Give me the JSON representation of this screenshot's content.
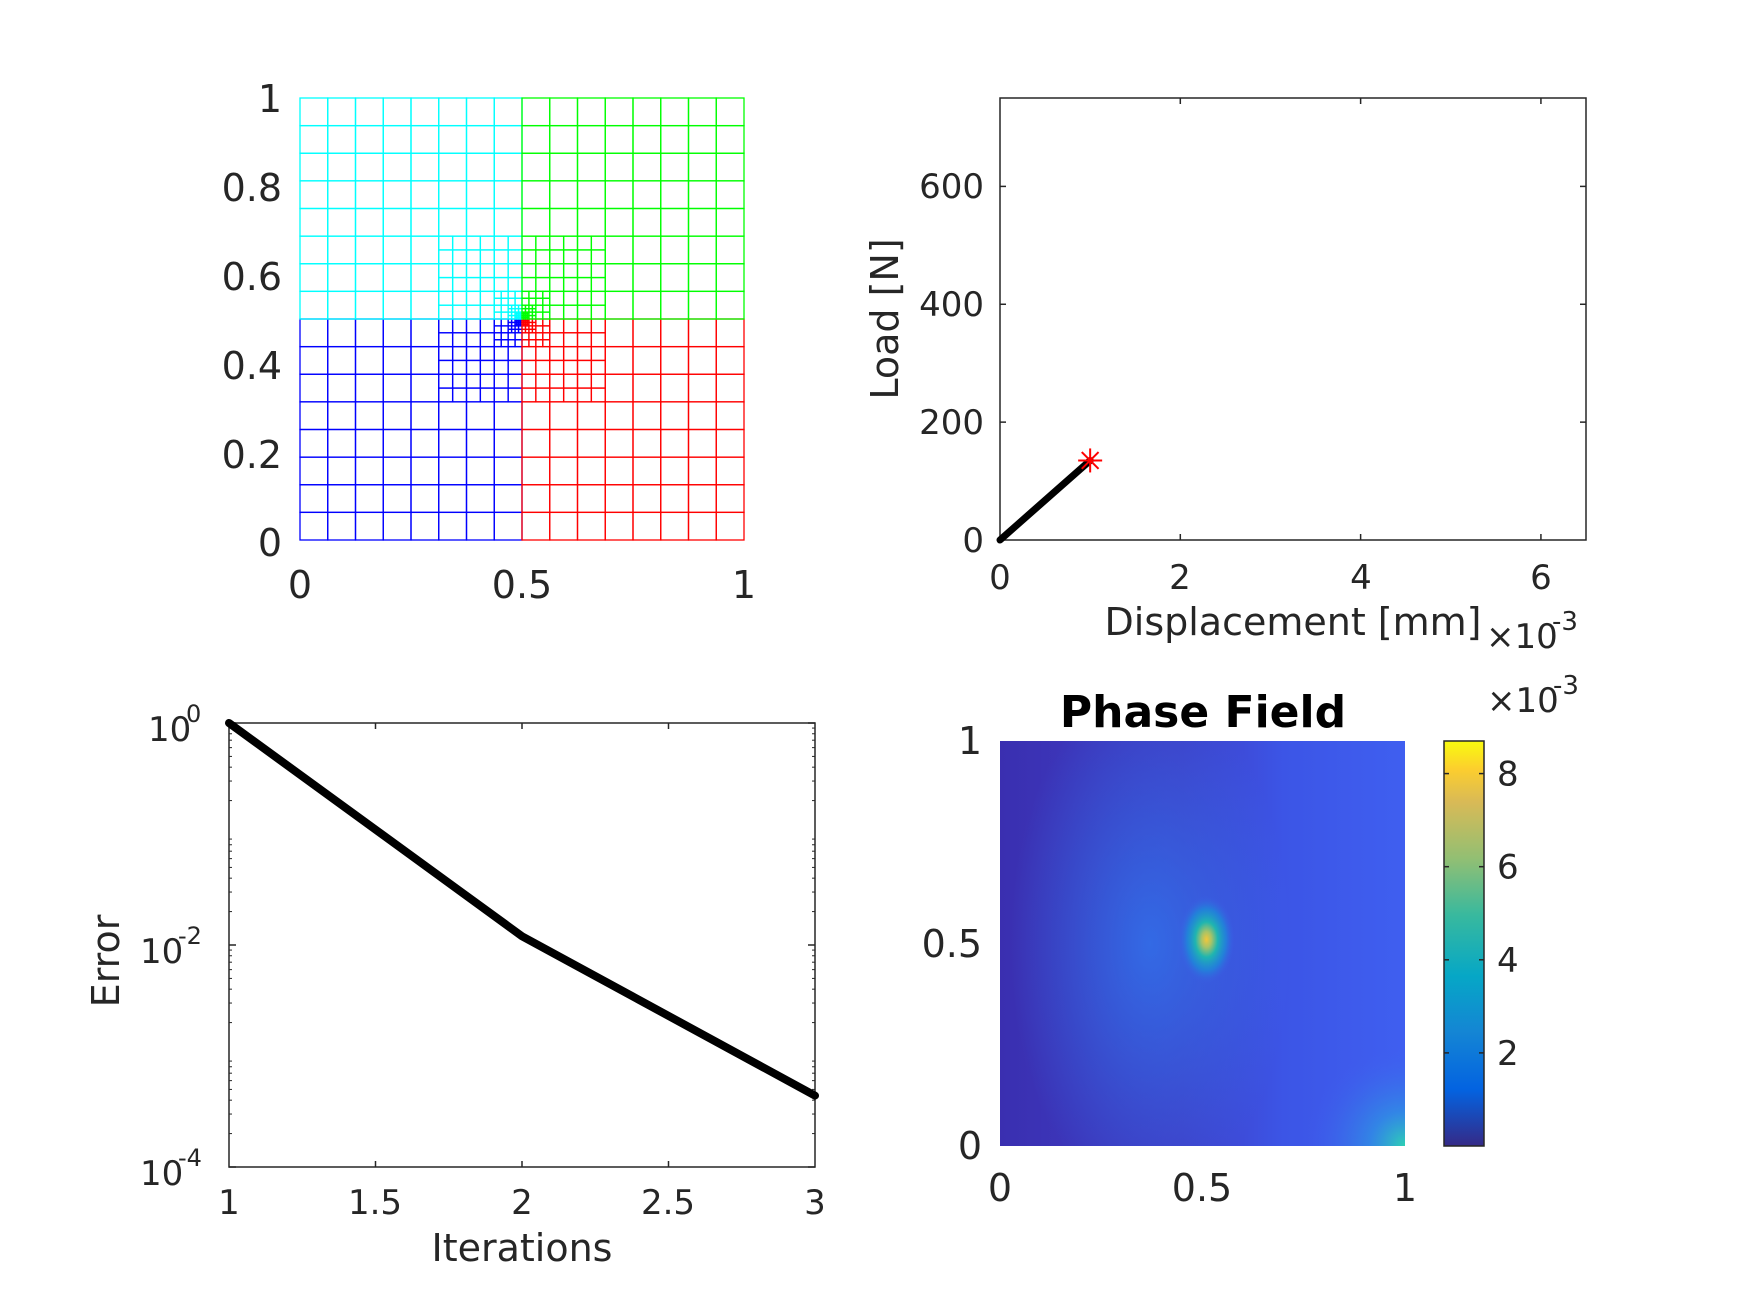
{
  "chart_data": [
    {
      "type": "mesh",
      "xlim": [
        0,
        1
      ],
      "ylim": [
        0,
        1
      ],
      "x_ticks": [
        "0",
        "0.5",
        "1"
      ],
      "y_ticks": [
        "0",
        "0.2",
        "0.4",
        "0.6",
        "0.8",
        "1"
      ],
      "quadrants": [
        {
          "color": "#0000ff",
          "x": [
            0,
            0.5
          ],
          "y": [
            0,
            0.5
          ]
        },
        {
          "color": "#ff0000",
          "x": [
            0.5,
            1
          ],
          "y": [
            0,
            0.5
          ]
        },
        {
          "color": "#00ffff",
          "x": [
            0,
            0.5
          ],
          "y": [
            0.5,
            1
          ]
        },
        {
          "color": "#00ff00",
          "x": [
            0.5,
            1
          ],
          "y": [
            0.5,
            1
          ]
        }
      ],
      "refinement_center": [
        0.5,
        0.5
      ]
    },
    {
      "type": "line",
      "xlabel": "Displacement [mm]",
      "ylabel": "Load [N]",
      "xlim": [
        0,
        0.0065
      ],
      "ylim": [
        0,
        750
      ],
      "x_exponent_label": "×10",
      "x_exponent_power": "-3",
      "x_ticks": [
        "0",
        "2",
        "4",
        "6"
      ],
      "y_ticks": [
        "0",
        "200",
        "400",
        "600"
      ],
      "series": [
        {
          "x": [
            0,
            0.001
          ],
          "y": [
            0,
            135
          ],
          "color": "#000000"
        }
      ],
      "marker": {
        "x": 0.001,
        "y": 135,
        "symbol": "*",
        "color": "#ff0000"
      }
    },
    {
      "type": "line",
      "xlabel": "Iterations",
      "ylabel": "Error",
      "yscale": "log",
      "xlim": [
        1,
        3
      ],
      "ylim": [
        0.0001,
        1
      ],
      "x_ticks": [
        "1",
        "1.5",
        "2",
        "2.5",
        "3"
      ],
      "y_tick_base": "10",
      "y_ticks": [
        "0",
        "-2",
        "-4"
      ],
      "series": [
        {
          "x": [
            1,
            2,
            3
          ],
          "y": [
            1,
            0.012,
            0.00044
          ],
          "color": "#000000"
        }
      ]
    },
    {
      "type": "heatmap",
      "title": "Phase Field",
      "xlim": [
        0,
        1
      ],
      "ylim": [
        0,
        1
      ],
      "x_ticks": [
        "0",
        "0.5",
        "1"
      ],
      "y_ticks": [
        "0",
        "0.5",
        "1"
      ],
      "colormap": "parula",
      "colorbar": {
        "range": [
          0,
          0.0087
        ],
        "ticks": [
          "2",
          "4",
          "6",
          "8"
        ],
        "exponent_label": "×10",
        "exponent_power": "-3"
      },
      "peak": {
        "x": 0.5,
        "y": 0.5,
        "value": 0.0085
      }
    }
  ]
}
